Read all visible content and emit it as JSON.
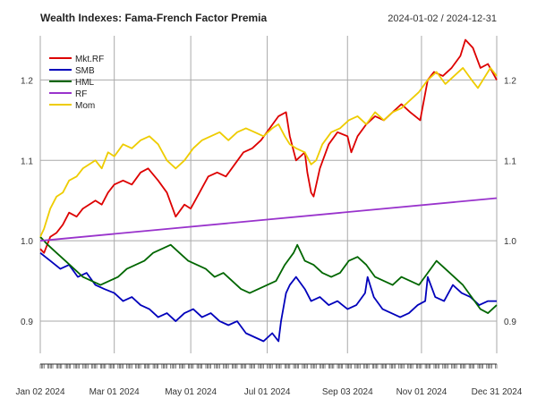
{
  "chart_data": {
    "type": "line",
    "title": "Wealth Indexes: Fama-French Factor Premia",
    "date_range": "2024-01-02 / 2024-12-31",
    "start_date": "2024-01-02",
    "end_date": "2024-12-31",
    "ylim": [
      0.86,
      1.255
    ],
    "y_ticks": [
      0.9,
      1.0,
      1.1,
      1.2
    ],
    "y_tick_labels": [
      "0.9",
      "1.0",
      "1.1",
      "1.2"
    ],
    "x_tick_labels": [
      {
        "date": "2024-01-02",
        "label": "Jan 02 2024"
      },
      {
        "date": "2024-03-01",
        "label": "Mar 01 2024"
      },
      {
        "date": "2024-05-01",
        "label": "May 01 2024"
      },
      {
        "date": "2024-07-01",
        "label": "Jul 01 2024"
      },
      {
        "date": "2024-09-03",
        "label": "Sep 03 2024"
      },
      {
        "date": "2024-11-01",
        "label": "Nov 01 2024"
      },
      {
        "date": "2024-12-31",
        "label": "Dec 31 2024"
      }
    ],
    "grid": true,
    "legend_position": "top-left",
    "series": [
      {
        "name": "Mkt.RF",
        "color": "#dd0000",
        "points": [
          [
            "2024-01-02",
            0.99
          ],
          [
            "2024-01-05",
            0.985
          ],
          [
            "2024-01-10",
            1.005
          ],
          [
            "2024-01-15",
            1.01
          ],
          [
            "2024-01-20",
            1.02
          ],
          [
            "2024-01-25",
            1.035
          ],
          [
            "2024-01-31",
            1.03
          ],
          [
            "2024-02-05",
            1.04
          ],
          [
            "2024-02-10",
            1.045
          ],
          [
            "2024-02-15",
            1.05
          ],
          [
            "2024-02-20",
            1.045
          ],
          [
            "2024-02-25",
            1.06
          ],
          [
            "2024-03-01",
            1.07
          ],
          [
            "2024-03-08",
            1.075
          ],
          [
            "2024-03-15",
            1.07
          ],
          [
            "2024-03-22",
            1.085
          ],
          [
            "2024-03-28",
            1.09
          ],
          [
            "2024-04-05",
            1.075
          ],
          [
            "2024-04-12",
            1.06
          ],
          [
            "2024-04-19",
            1.03
          ],
          [
            "2024-04-26",
            1.045
          ],
          [
            "2024-05-01",
            1.04
          ],
          [
            "2024-05-08",
            1.06
          ],
          [
            "2024-05-15",
            1.08
          ],
          [
            "2024-05-22",
            1.085
          ],
          [
            "2024-05-29",
            1.08
          ],
          [
            "2024-06-05",
            1.095
          ],
          [
            "2024-06-12",
            1.11
          ],
          [
            "2024-06-19",
            1.115
          ],
          [
            "2024-06-26",
            1.125
          ],
          [
            "2024-07-03",
            1.14
          ],
          [
            "2024-07-10",
            1.155
          ],
          [
            "2024-07-16",
            1.16
          ],
          [
            "2024-07-19",
            1.13
          ],
          [
            "2024-07-24",
            1.1
          ],
          [
            "2024-07-31",
            1.11
          ],
          [
            "2024-08-02",
            1.085
          ],
          [
            "2024-08-05",
            1.06
          ],
          [
            "2024-08-07",
            1.055
          ],
          [
            "2024-08-12",
            1.09
          ],
          [
            "2024-08-19",
            1.12
          ],
          [
            "2024-08-26",
            1.135
          ],
          [
            "2024-09-03",
            1.13
          ],
          [
            "2024-09-06",
            1.11
          ],
          [
            "2024-09-11",
            1.13
          ],
          [
            "2024-09-18",
            1.145
          ],
          [
            "2024-09-25",
            1.155
          ],
          [
            "2024-10-02",
            1.15
          ],
          [
            "2024-10-09",
            1.16
          ],
          [
            "2024-10-16",
            1.17
          ],
          [
            "2024-10-23",
            1.16
          ],
          [
            "2024-10-31",
            1.15
          ],
          [
            "2024-11-06",
            1.2
          ],
          [
            "2024-11-11",
            1.21
          ],
          [
            "2024-11-18",
            1.205
          ],
          [
            "2024-11-25",
            1.215
          ],
          [
            "2024-12-02",
            1.23
          ],
          [
            "2024-12-06",
            1.25
          ],
          [
            "2024-12-12",
            1.24
          ],
          [
            "2024-12-18",
            1.215
          ],
          [
            "2024-12-24",
            1.22
          ],
          [
            "2024-12-31",
            1.2
          ]
        ]
      },
      {
        "name": "SMB",
        "color": "#0000bb",
        "points": [
          [
            "2024-01-02",
            0.985
          ],
          [
            "2024-01-10",
            0.975
          ],
          [
            "2024-01-18",
            0.965
          ],
          [
            "2024-01-25",
            0.97
          ],
          [
            "2024-02-01",
            0.955
          ],
          [
            "2024-02-08",
            0.96
          ],
          [
            "2024-02-15",
            0.945
          ],
          [
            "2024-02-22",
            0.94
          ],
          [
            "2024-03-01",
            0.935
          ],
          [
            "2024-03-08",
            0.925
          ],
          [
            "2024-03-15",
            0.93
          ],
          [
            "2024-03-22",
            0.92
          ],
          [
            "2024-03-29",
            0.915
          ],
          [
            "2024-04-05",
            0.905
          ],
          [
            "2024-04-12",
            0.91
          ],
          [
            "2024-04-19",
            0.9
          ],
          [
            "2024-04-26",
            0.91
          ],
          [
            "2024-05-03",
            0.915
          ],
          [
            "2024-05-10",
            0.905
          ],
          [
            "2024-05-17",
            0.91
          ],
          [
            "2024-05-24",
            0.9
          ],
          [
            "2024-05-31",
            0.895
          ],
          [
            "2024-06-07",
            0.9
          ],
          [
            "2024-06-14",
            0.885
          ],
          [
            "2024-06-21",
            0.88
          ],
          [
            "2024-06-28",
            0.875
          ],
          [
            "2024-07-05",
            0.885
          ],
          [
            "2024-07-10",
            0.875
          ],
          [
            "2024-07-12",
            0.9
          ],
          [
            "2024-07-16",
            0.935
          ],
          [
            "2024-07-19",
            0.945
          ],
          [
            "2024-07-24",
            0.955
          ],
          [
            "2024-07-31",
            0.94
          ],
          [
            "2024-08-05",
            0.925
          ],
          [
            "2024-08-12",
            0.93
          ],
          [
            "2024-08-19",
            0.92
          ],
          [
            "2024-08-26",
            0.925
          ],
          [
            "2024-09-03",
            0.915
          ],
          [
            "2024-09-10",
            0.92
          ],
          [
            "2024-09-17",
            0.935
          ],
          [
            "2024-09-19",
            0.955
          ],
          [
            "2024-09-24",
            0.93
          ],
          [
            "2024-10-01",
            0.915
          ],
          [
            "2024-10-08",
            0.91
          ],
          [
            "2024-10-15",
            0.905
          ],
          [
            "2024-10-22",
            0.91
          ],
          [
            "2024-10-29",
            0.92
          ],
          [
            "2024-11-04",
            0.925
          ],
          [
            "2024-11-06",
            0.955
          ],
          [
            "2024-11-12",
            0.93
          ],
          [
            "2024-11-19",
            0.925
          ],
          [
            "2024-11-26",
            0.945
          ],
          [
            "2024-12-03",
            0.935
          ],
          [
            "2024-12-10",
            0.93
          ],
          [
            "2024-12-17",
            0.92
          ],
          [
            "2024-12-24",
            0.925
          ],
          [
            "2024-12-31",
            0.925
          ]
        ]
      },
      {
        "name": "HML",
        "color": "#006600",
        "points": [
          [
            "2024-01-02",
            1.005
          ],
          [
            "2024-01-08",
            0.995
          ],
          [
            "2024-01-15",
            0.985
          ],
          [
            "2024-01-22",
            0.975
          ],
          [
            "2024-01-29",
            0.965
          ],
          [
            "2024-02-05",
            0.955
          ],
          [
            "2024-02-12",
            0.95
          ],
          [
            "2024-02-19",
            0.945
          ],
          [
            "2024-02-26",
            0.95
          ],
          [
            "2024-03-04",
            0.955
          ],
          [
            "2024-03-11",
            0.965
          ],
          [
            "2024-03-18",
            0.97
          ],
          [
            "2024-03-25",
            0.975
          ],
          [
            "2024-04-01",
            0.985
          ],
          [
            "2024-04-08",
            0.99
          ],
          [
            "2024-04-15",
            0.995
          ],
          [
            "2024-04-22",
            0.985
          ],
          [
            "2024-04-29",
            0.975
          ],
          [
            "2024-05-06",
            0.97
          ],
          [
            "2024-05-13",
            0.965
          ],
          [
            "2024-05-20",
            0.955
          ],
          [
            "2024-05-27",
            0.96
          ],
          [
            "2024-06-03",
            0.95
          ],
          [
            "2024-06-10",
            0.94
          ],
          [
            "2024-06-17",
            0.935
          ],
          [
            "2024-06-24",
            0.94
          ],
          [
            "2024-07-01",
            0.945
          ],
          [
            "2024-07-08",
            0.95
          ],
          [
            "2024-07-15",
            0.97
          ],
          [
            "2024-07-22",
            0.985
          ],
          [
            "2024-07-25",
            0.995
          ],
          [
            "2024-07-31",
            0.975
          ],
          [
            "2024-08-07",
            0.97
          ],
          [
            "2024-08-14",
            0.96
          ],
          [
            "2024-08-21",
            0.955
          ],
          [
            "2024-08-28",
            0.96
          ],
          [
            "2024-09-04",
            0.975
          ],
          [
            "2024-09-11",
            0.98
          ],
          [
            "2024-09-18",
            0.97
          ],
          [
            "2024-09-25",
            0.955
          ],
          [
            "2024-10-02",
            0.95
          ],
          [
            "2024-10-09",
            0.945
          ],
          [
            "2024-10-16",
            0.955
          ],
          [
            "2024-10-23",
            0.95
          ],
          [
            "2024-10-30",
            0.945
          ],
          [
            "2024-11-06",
            0.96
          ],
          [
            "2024-11-13",
            0.975
          ],
          [
            "2024-11-20",
            0.965
          ],
          [
            "2024-11-27",
            0.955
          ],
          [
            "2024-12-04",
            0.945
          ],
          [
            "2024-12-11",
            0.93
          ],
          [
            "2024-12-18",
            0.915
          ],
          [
            "2024-12-24",
            0.91
          ],
          [
            "2024-12-31",
            0.92
          ]
        ]
      },
      {
        "name": "RF",
        "color": "#9933cc",
        "points": [
          [
            "2024-01-02",
            1.0
          ],
          [
            "2024-12-31",
            1.053
          ]
        ]
      },
      {
        "name": "Mom",
        "color": "#eecc00",
        "points": [
          [
            "2024-01-02",
            1.005
          ],
          [
            "2024-01-05",
            1.015
          ],
          [
            "2024-01-10",
            1.04
          ],
          [
            "2024-01-15",
            1.055
          ],
          [
            "2024-01-20",
            1.06
          ],
          [
            "2024-01-25",
            1.075
          ],
          [
            "2024-01-31",
            1.08
          ],
          [
            "2024-02-05",
            1.09
          ],
          [
            "2024-02-10",
            1.095
          ],
          [
            "2024-02-15",
            1.1
          ],
          [
            "2024-02-20",
            1.09
          ],
          [
            "2024-02-25",
            1.11
          ],
          [
            "2024-03-01",
            1.105
          ],
          [
            "2024-03-08",
            1.12
          ],
          [
            "2024-03-15",
            1.115
          ],
          [
            "2024-03-22",
            1.125
          ],
          [
            "2024-03-29",
            1.13
          ],
          [
            "2024-04-05",
            1.12
          ],
          [
            "2024-04-12",
            1.1
          ],
          [
            "2024-04-19",
            1.09
          ],
          [
            "2024-04-26",
            1.1
          ],
          [
            "2024-05-03",
            1.115
          ],
          [
            "2024-05-10",
            1.125
          ],
          [
            "2024-05-17",
            1.13
          ],
          [
            "2024-05-24",
            1.135
          ],
          [
            "2024-05-31",
            1.125
          ],
          [
            "2024-06-07",
            1.135
          ],
          [
            "2024-06-14",
            1.14
          ],
          [
            "2024-06-21",
            1.135
          ],
          [
            "2024-06-28",
            1.13
          ],
          [
            "2024-07-05",
            1.14
          ],
          [
            "2024-07-10",
            1.145
          ],
          [
            "2024-07-15",
            1.13
          ],
          [
            "2024-07-19",
            1.12
          ],
          [
            "2024-07-24",
            1.115
          ],
          [
            "2024-07-31",
            1.11
          ],
          [
            "2024-08-05",
            1.095
          ],
          [
            "2024-08-09",
            1.1
          ],
          [
            "2024-08-14",
            1.12
          ],
          [
            "2024-08-21",
            1.135
          ],
          [
            "2024-08-28",
            1.14
          ],
          [
            "2024-09-04",
            1.15
          ],
          [
            "2024-09-11",
            1.155
          ],
          [
            "2024-09-18",
            1.145
          ],
          [
            "2024-09-25",
            1.16
          ],
          [
            "2024-10-02",
            1.15
          ],
          [
            "2024-10-09",
            1.16
          ],
          [
            "2024-10-16",
            1.165
          ],
          [
            "2024-10-23",
            1.175
          ],
          [
            "2024-10-30",
            1.185
          ],
          [
            "2024-11-06",
            1.2
          ],
          [
            "2024-11-13",
            1.21
          ],
          [
            "2024-11-20",
            1.195
          ],
          [
            "2024-11-27",
            1.205
          ],
          [
            "2024-12-04",
            1.215
          ],
          [
            "2024-12-11",
            1.2
          ],
          [
            "2024-12-16",
            1.19
          ],
          [
            "2024-12-20",
            1.2
          ],
          [
            "2024-12-26",
            1.215
          ],
          [
            "2024-12-31",
            1.205
          ]
        ]
      }
    ]
  }
}
